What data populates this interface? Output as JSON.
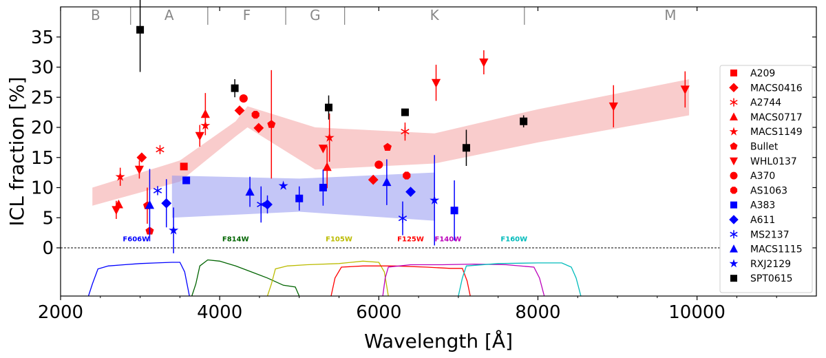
{
  "chart_data": {
    "type": "scatter",
    "xlabel": "Wavelength [Å]",
    "ylabel": "ICL fraction [%]",
    "xlim": [
      2000,
      11500
    ],
    "ylim": [
      -8,
      40
    ],
    "xticks": [
      2000,
      4000,
      6000,
      8000,
      10000
    ],
    "yticks": [
      0,
      5,
      10,
      15,
      20,
      25,
      30,
      35
    ],
    "colors": {
      "red": "#ff0000",
      "blue": "#0000ff",
      "black": "#000000",
      "red_band": "#f49a9a",
      "blue_band": "#8a8ef0"
    },
    "spectral_types": [
      {
        "label": "B",
        "from": 2000,
        "to": 2880
      },
      {
        "label": "A",
        "from": 2880,
        "to": 3850
      },
      {
        "label": "F",
        "from": 3850,
        "to": 4830
      },
      {
        "label": "G",
        "from": 4830,
        "to": 5570
      },
      {
        "label": "K",
        "from": 5570,
        "to": 7830
      },
      {
        "label": "M",
        "from": 7830,
        "to": 11500
      }
    ],
    "red_band": {
      "x": [
        2400,
        3500,
        4200,
        4350,
        5200,
        6700,
        8000,
        9900
      ],
      "lower": [
        7,
        11,
        18.5,
        20,
        13,
        14,
        17.5,
        22
      ],
      "upper": [
        10,
        14.5,
        21,
        23.5,
        20,
        19,
        23,
        28
      ]
    },
    "blue_band": {
      "x": [
        3400,
        5000,
        6700
      ],
      "lower": [
        5,
        6,
        4.5
      ],
      "upper": [
        12,
        11.5,
        12.5
      ]
    },
    "filters": [
      {
        "name": "F606W",
        "color": "#0000ff",
        "label_x": 2950,
        "points": [
          [
            2350,
            -8
          ],
          [
            2400,
            -6
          ],
          [
            2470,
            -3.5
          ],
          [
            2600,
            -3
          ],
          [
            2800,
            -2.8
          ],
          [
            3000,
            -2.6
          ],
          [
            3200,
            -2.5
          ],
          [
            3400,
            -2.4
          ],
          [
            3500,
            -2.4
          ],
          [
            3560,
            -4
          ],
          [
            3620,
            -8
          ]
        ]
      },
      {
        "name": "F814W",
        "color": "#006400",
        "label_x": 4200,
        "points": [
          [
            3650,
            -8
          ],
          [
            3700,
            -6
          ],
          [
            3750,
            -3
          ],
          [
            3850,
            -2
          ],
          [
            4000,
            -2.2
          ],
          [
            4200,
            -3
          ],
          [
            4400,
            -4
          ],
          [
            4600,
            -5
          ],
          [
            4800,
            -6.2
          ],
          [
            4950,
            -6.5
          ],
          [
            5000,
            -8
          ]
        ]
      },
      {
        "name": "F105W",
        "color": "#bbbb00",
        "label_x": 5500,
        "points": [
          [
            4600,
            -8
          ],
          [
            4650,
            -6
          ],
          [
            4700,
            -3.5
          ],
          [
            4850,
            -3
          ],
          [
            5100,
            -2.8
          ],
          [
            5500,
            -2.6
          ],
          [
            5800,
            -2.2
          ],
          [
            6000,
            -2.4
          ],
          [
            6070,
            -4
          ],
          [
            6120,
            -8
          ]
        ]
      },
      {
        "name": "F125W",
        "color": "#ff0000",
        "label_x": 6400,
        "points": [
          [
            5400,
            -8
          ],
          [
            5450,
            -5
          ],
          [
            5530,
            -3.2
          ],
          [
            5800,
            -3
          ],
          [
            6200,
            -3
          ],
          [
            6600,
            -3.2
          ],
          [
            6900,
            -3.4
          ],
          [
            7050,
            -3.4
          ],
          [
            7110,
            -5.5
          ],
          [
            7150,
            -8
          ]
        ]
      },
      {
        "name": "F140W",
        "color": "#bb00bb",
        "label_x": 6870,
        "points": [
          [
            6050,
            -8
          ],
          [
            6080,
            -5
          ],
          [
            6120,
            -3.2
          ],
          [
            6400,
            -2.8
          ],
          [
            6800,
            -2.8
          ],
          [
            7200,
            -2.7
          ],
          [
            7600,
            -2.8
          ],
          [
            7950,
            -3.2
          ],
          [
            8020,
            -5
          ],
          [
            8080,
            -8
          ]
        ]
      },
      {
        "name": "F160W",
        "color": "#00bbbb",
        "label_x": 7700,
        "points": [
          [
            7000,
            -8
          ],
          [
            7050,
            -5
          ],
          [
            7100,
            -3
          ],
          [
            7500,
            -2.6
          ],
          [
            8000,
            -2.5
          ],
          [
            8300,
            -2.5
          ],
          [
            8420,
            -3.2
          ],
          [
            8480,
            -5
          ],
          [
            8540,
            -8
          ]
        ]
      }
    ],
    "series": [
      {
        "name": "A209",
        "marker": "square",
        "color": "#ff0000",
        "points": [
          {
            "x": 3550,
            "y": 13.5
          }
        ]
      },
      {
        "name": "MACS0416",
        "marker": "diamond",
        "color": "#ff0000",
        "points": [
          {
            "x": 3020,
            "y": 15
          },
          {
            "x": 4250,
            "y": 22.8
          },
          {
            "x": 4490,
            "y": 19.9
          },
          {
            "x": 5930,
            "y": 11.3
          }
        ]
      },
      {
        "name": "A2744",
        "marker": "asterisk",
        "color": "#ff0000",
        "points": [
          {
            "x": 3250,
            "y": 16.3
          },
          {
            "x": 6330,
            "y": 19.3,
            "err": 1.5
          }
        ]
      },
      {
        "name": "MACS0717",
        "marker": "triangle-up",
        "color": "#ff0000",
        "points": [
          {
            "x": 2730,
            "y": 7.2
          },
          {
            "x": 3820,
            "y": 22.2,
            "err": 3.5
          },
          {
            "x": 5350,
            "y": 13.4,
            "err": 3.5
          }
        ]
      },
      {
        "name": "MACS1149",
        "marker": "star",
        "color": "#ff0000",
        "points": [
          {
            "x": 2750,
            "y": 11.8,
            "err": 1.5
          },
          {
            "x": 3820,
            "y": 20.3
          },
          {
            "x": 5380,
            "y": 18.3,
            "err": 4
          }
        ]
      },
      {
        "name": "Bullet",
        "marker": "pentagon",
        "color": "#ff0000",
        "points": [
          {
            "x": 3090,
            "y": 7,
            "err": 3
          },
          {
            "x": 3120,
            "y": 2.8
          },
          {
            "x": 4650,
            "y": 20.5,
            "err": 9
          },
          {
            "x": 6110,
            "y": 16.7
          }
        ]
      },
      {
        "name": "WHL0137",
        "marker": "triangle-down",
        "color": "#ff0000",
        "points": [
          {
            "x": 2700,
            "y": 6.3,
            "err": 1.5
          },
          {
            "x": 2990,
            "y": 13,
            "err": 1.5
          },
          {
            "x": 3750,
            "y": 18.6,
            "err": 1.8
          },
          {
            "x": 5300,
            "y": 16.5
          },
          {
            "x": 6720,
            "y": 27.4,
            "err": 3
          },
          {
            "x": 7320,
            "y": 30.8,
            "err": 2
          },
          {
            "x": 8950,
            "y": 23.5,
            "err": 3.5
          },
          {
            "x": 9850,
            "y": 26.3,
            "err": 3
          }
        ]
      },
      {
        "name": "A370",
        "marker": "circle",
        "color": "#ff0000",
        "points": [
          {
            "x": 4300,
            "y": 24.8
          },
          {
            "x": 6000,
            "y": 13.8
          }
        ]
      },
      {
        "name": "AS1063",
        "marker": "octagon",
        "color": "#ff0000",
        "points": [
          {
            "x": 4450,
            "y": 22.1
          },
          {
            "x": 6350,
            "y": 12
          }
        ]
      },
      {
        "name": "A383",
        "marker": "square",
        "color": "#0000ff",
        "points": [
          {
            "x": 3580,
            "y": 11.2
          },
          {
            "x": 5000,
            "y": 8.2,
            "err": 2
          },
          {
            "x": 5300,
            "y": 10,
            "err": 3
          },
          {
            "x": 6950,
            "y": 6.2,
            "err": 5
          }
        ]
      },
      {
        "name": "A611",
        "marker": "diamond",
        "color": "#0000ff",
        "points": [
          {
            "x": 3330,
            "y": 7.4,
            "err": 4
          },
          {
            "x": 4600,
            "y": 7.2,
            "err": 1.5
          },
          {
            "x": 6400,
            "y": 9.3
          }
        ]
      },
      {
        "name": "MS2137",
        "marker": "asterisk",
        "color": "#0000ff",
        "points": [
          {
            "x": 3220,
            "y": 9.5
          },
          {
            "x": 4520,
            "y": 7.2,
            "err": 3
          },
          {
            "x": 6300,
            "y": 4.9,
            "err": 2.8
          }
        ]
      },
      {
        "name": "MACS1115",
        "marker": "triangle-up",
        "color": "#0000ff",
        "points": [
          {
            "x": 3120,
            "y": 7.1,
            "err": 6
          },
          {
            "x": 4380,
            "y": 9.3,
            "err": 2.5
          },
          {
            "x": 6100,
            "y": 10.9,
            "err": 3.8
          }
        ]
      },
      {
        "name": "RXJ2129",
        "marker": "star",
        "color": "#0000ff",
        "points": [
          {
            "x": 3420,
            "y": 2.9,
            "err": 3.8
          },
          {
            "x": 4800,
            "y": 10.3
          },
          {
            "x": 6700,
            "y": 7.9,
            "err": 7.5
          }
        ]
      },
      {
        "name": "SPT0615",
        "marker": "square",
        "color": "#000000",
        "points": [
          {
            "x": 3000,
            "y": 36.2,
            "err": 7
          },
          {
            "x": 4190,
            "y": 26.5,
            "err": 1.5
          },
          {
            "x": 5370,
            "y": 23.3,
            "err": 2
          },
          {
            "x": 6330,
            "y": 22.5
          },
          {
            "x": 7100,
            "y": 16.6,
            "err": 3
          },
          {
            "x": 7820,
            "y": 21,
            "err": 1
          }
        ]
      }
    ]
  }
}
